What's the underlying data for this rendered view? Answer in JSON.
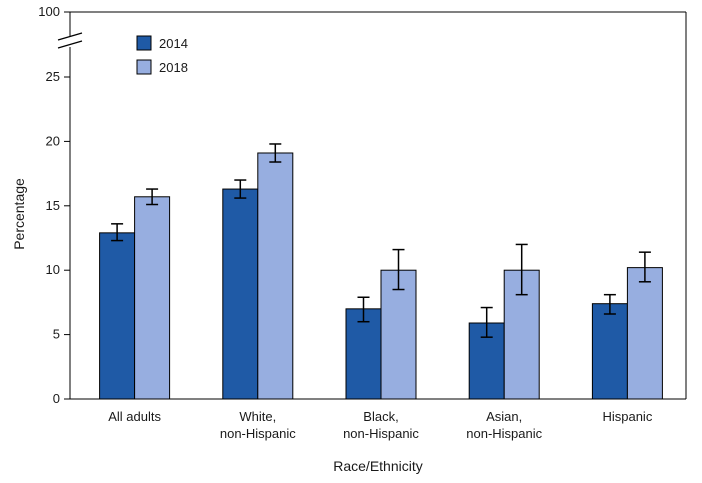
{
  "chart_data": {
    "type": "bar",
    "title": "",
    "xlabel": "Race/Ethnicity",
    "ylabel": "Percentage",
    "ylim": [
      0,
      25
    ],
    "axis_break_top_label": "100",
    "yticks": [
      0,
      5,
      10,
      15,
      20,
      25
    ],
    "categories": [
      [
        "All adults"
      ],
      [
        "White,",
        "non-Hispanic"
      ],
      [
        "Black,",
        "non-Hispanic"
      ],
      [
        "Asian,",
        "non-Hispanic"
      ],
      [
        "Hispanic"
      ]
    ],
    "series": [
      {
        "name": "2014",
        "color": "#1f5aa6",
        "values": [
          12.9,
          16.3,
          7.0,
          5.9,
          7.4
        ],
        "ci_low": [
          12.3,
          15.6,
          6.0,
          4.8,
          6.6
        ],
        "ci_high": [
          13.6,
          17.0,
          7.9,
          7.1,
          8.1
        ]
      },
      {
        "name": "2018",
        "color": "#97aee0",
        "values": [
          15.7,
          19.1,
          10.0,
          10.0,
          10.2
        ],
        "ci_low": [
          15.1,
          18.4,
          8.5,
          8.1,
          9.1
        ],
        "ci_high": [
          16.3,
          19.8,
          11.6,
          12.0,
          11.4
        ]
      }
    ],
    "legend_position": "top-left"
  }
}
